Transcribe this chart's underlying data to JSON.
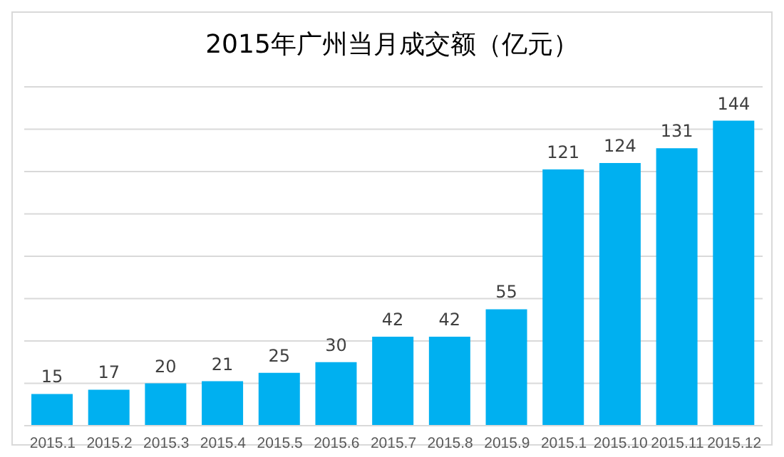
{
  "chart_data": {
    "type": "bar",
    "title": "2015年广州当月成交额（亿元）",
    "categories": [
      "2015.1",
      "2015.2",
      "2015.3",
      "2015.4",
      "2015.5",
      "2015.6",
      "2015.7",
      "2015.8",
      "2015.9",
      "2015.1",
      "2015.10",
      "2015.11",
      "2015.12"
    ],
    "values": [
      15,
      17,
      20,
      21,
      25,
      30,
      42,
      42,
      55,
      121,
      124,
      131,
      144
    ],
    "color": "#00b0f0",
    "grid": "y",
    "tick_labels": "x",
    "data_labels": true,
    "legend": false
  }
}
